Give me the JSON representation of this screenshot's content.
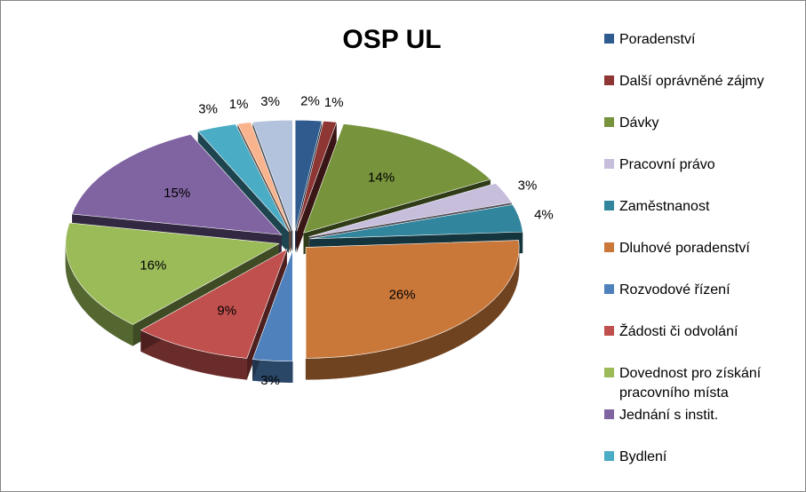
{
  "chart_data": {
    "type": "pie",
    "title": "OSP UL",
    "slices": [
      {
        "name": "Poradenství",
        "value": 2,
        "label": "2%",
        "color": "#2f5b8f"
      },
      {
        "name": "Další oprávněné zájmy",
        "value": 1,
        "label": "1%",
        "color": "#8e3634"
      },
      {
        "name": "Dávky",
        "value": 14,
        "label": "14%",
        "color": "#77933c"
      },
      {
        "name": "Pracovní právo",
        "value": 3,
        "label": "3%",
        "color": "#c6bedb"
      },
      {
        "name": "Zaměstnanost",
        "value": 4,
        "label": "4%",
        "color": "#31859c"
      },
      {
        "name": "Dluhové poradenství",
        "value": 26,
        "label": "26%",
        "color": "#c9783a"
      },
      {
        "name": "Rozvodové řízení",
        "value": 3,
        "label": "3%",
        "color": "#4f81bd"
      },
      {
        "name": "Žádosti či odvolání",
        "value": 9,
        "label": "9%",
        "color": "#c0504d"
      },
      {
        "name": "Dovednost pro získání pracovního místa",
        "value": 16,
        "label": "16%",
        "color": "#9bbb59"
      },
      {
        "name": "Jednání s instit.",
        "value": 15,
        "label": "15%",
        "color": "#8064a2"
      },
      {
        "name": "Bydlení",
        "value": 3,
        "label": "3%",
        "color": "#4bacc6"
      },
      {
        "name": "",
        "value": 1,
        "label": "1%",
        "color": "#f9b48e"
      },
      {
        "name": "",
        "value": 3,
        "label": "3%",
        "color": "#b3c2dd"
      }
    ],
    "legend_position": "right"
  }
}
